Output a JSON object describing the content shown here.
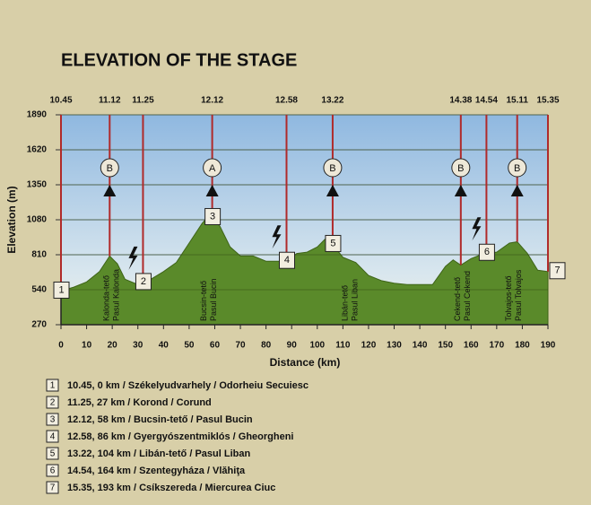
{
  "chart_data": {
    "type": "area",
    "title": "ELEVATION OF THE STAGE",
    "x_label": "Distance (km)",
    "y_label": "Elevation (m)",
    "x": [
      0,
      5,
      10,
      15,
      19,
      22,
      25,
      30,
      35,
      40,
      45,
      50,
      55,
      58,
      62,
      66,
      70,
      75,
      80,
      85,
      88,
      92,
      96,
      100,
      103,
      106,
      110,
      115,
      120,
      125,
      130,
      135,
      140,
      145,
      150,
      153,
      156,
      160,
      165,
      170,
      175,
      178,
      182,
      186,
      190
    ],
    "values": [
      530,
      560,
      600,
      680,
      800,
      740,
      620,
      580,
      620,
      680,
      750,
      900,
      1050,
      1120,
      1030,
      870,
      800,
      800,
      760,
      760,
      760,
      820,
      830,
      870,
      930,
      890,
      790,
      750,
      650,
      610,
      590,
      580,
      580,
      580,
      720,
      770,
      730,
      780,
      820,
      830,
      900,
      910,
      820,
      690,
      680
    ],
    "color": "#5a8a2a",
    "line_color": "#b02a2a",
    "xlim": [
      0,
      190
    ],
    "xticks": [
      0,
      10,
      20,
      30,
      40,
      50,
      60,
      70,
      80,
      90,
      100,
      110,
      120,
      130,
      140,
      150,
      160,
      170,
      180,
      190
    ],
    "ylim": [
      270,
      1890
    ],
    "yticks": [
      270,
      540,
      810,
      1080,
      1350,
      1620,
      1890
    ],
    "grid": true,
    "stations": [
      {
        "time": "10.45",
        "x": 0,
        "box": "1"
      },
      {
        "time": "11.12",
        "x": 19,
        "sign": "B"
      },
      {
        "time": "11.25",
        "x": 32,
        "box": "2",
        "sprint": true
      },
      {
        "time": "12.12",
        "x": 59,
        "sign": "A",
        "box": "3"
      },
      {
        "time": "12.58",
        "x": 88,
        "box": "4",
        "sprint": true
      },
      {
        "time": "13.22",
        "x": 106,
        "sign": "B",
        "box": "5"
      },
      {
        "time": "14.38",
        "x": 156,
        "sign": "B"
      },
      {
        "time": "14.54",
        "x": 166,
        "box": "6",
        "sprint": true
      },
      {
        "time": "15.11",
        "x": 178,
        "sign": "B"
      },
      {
        "time": "15.35",
        "x": 190,
        "box": "7"
      }
    ],
    "peaks": [
      {
        "x": 20,
        "lines": [
          "Kalonda-tető",
          "Pasul Kalonda"
        ]
      },
      {
        "x": 58,
        "lines": [
          "Bucsin-tető",
          "Pasul Bucin"
        ]
      },
      {
        "x": 113,
        "lines": [
          "Libán-tető",
          "Pasul Liban"
        ]
      },
      {
        "x": 157,
        "lines": [
          "Cekend-tető",
          "Pasul Cekend"
        ]
      },
      {
        "x": 177,
        "lines": [
          "Tolvajos-tető",
          "Pasul Tolvajos"
        ]
      }
    ],
    "legend": [
      {
        "number": "1",
        "text": "10.45, 0 km / Székelyudvarhely / Odorheiu Secuiesc"
      },
      {
        "number": "2",
        "text": "11.25, 27 km / Korond / Corund"
      },
      {
        "number": "3",
        "text": "12.12, 58 km / Bucsin-tető / Pasul Bucin"
      },
      {
        "number": "4",
        "text": "12.58, 86 km / Gyergyószentmiklós / Gheorgheni"
      },
      {
        "number": "5",
        "text": "13.22, 104 km / Libán-tető / Pasul Liban"
      },
      {
        "number": "6",
        "text": "14.54, 164 km / Szentegyháza / Vlăhiţa"
      },
      {
        "number": "7",
        "text": "15.35, 193 km / Csíkszereda / Miercurea Ciuc"
      }
    ]
  }
}
